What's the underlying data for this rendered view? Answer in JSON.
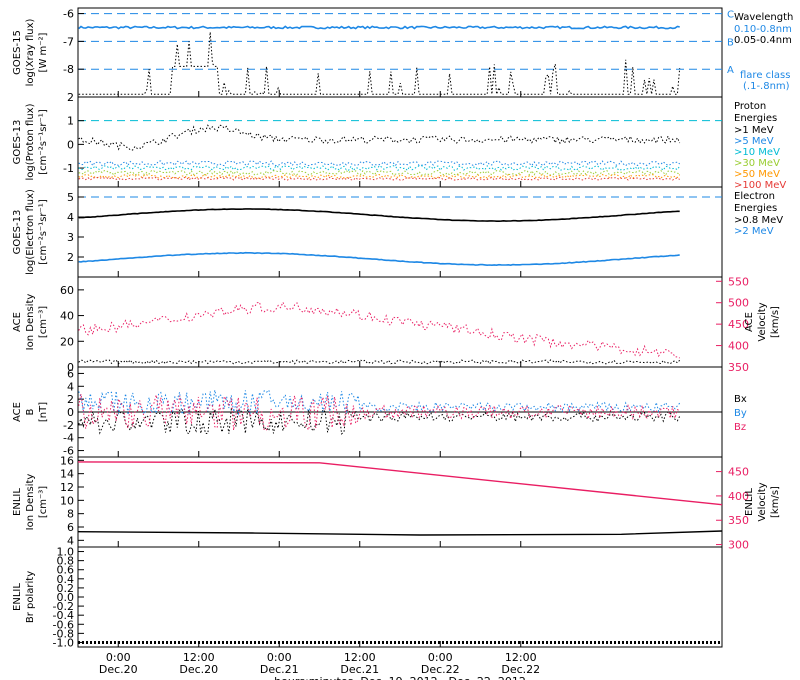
{
  "chart_data": {
    "type": "line",
    "xlabel": "hours:minutes, Dec. 19, 2012 - Dec. 22, 2012",
    "x_range_hours": [
      -6,
      90
    ],
    "x_ticks": [
      {
        "hours": 0,
        "time": "0:00",
        "date": "Dec.20"
      },
      {
        "hours": 12,
        "time": "12:00",
        "date": "Dec.20"
      },
      {
        "hours": 24,
        "time": "0:00",
        "date": "Dec.21"
      },
      {
        "hours": 36,
        "time": "12:00",
        "date": "Dec.21"
      },
      {
        "hours": 48,
        "time": "0:00",
        "date": "Dec.22"
      },
      {
        "hours": 60,
        "time": "12:00",
        "date": "Dec.22"
      }
    ],
    "panels": [
      {
        "id": "goes-xray",
        "ylabel": [
          "GOES-15",
          "log(Xray flux)",
          "[W m⁻²]"
        ],
        "ylim": [
          -9,
          -5.8
        ],
        "ticks": [
          -6,
          -7,
          -8
        ],
        "grid_dashed": [
          -6,
          -7,
          -8
        ],
        "legend_title": "Wavelength",
        "legend": [
          {
            "text": "0.10-0.8nm",
            "color": "#1e88e5"
          },
          {
            "text": "0.05-0.4nm",
            "color": "#000000"
          }
        ],
        "flare_class_labels": [
          {
            "text": "C",
            "y": -6
          },
          {
            "text": "B",
            "y": -7
          },
          {
            "text": "A",
            "y": -8
          }
        ],
        "flare_class_note": [
          "flare class",
          "(.1-.8nm)"
        ],
        "series": [
          {
            "color": "#1e88e5",
            "baseline": -6.5,
            "noise": 0.04
          },
          {
            "color": "#000000",
            "baseline": -8.9,
            "noise": 0.1
          }
        ]
      },
      {
        "id": "goes-proton",
        "ylabel": [
          "GOES-13",
          "log(Proton flux)",
          "[cm⁻²s⁻¹sr⁻¹]"
        ],
        "ylim": [
          -1.8,
          2.0
        ],
        "ticks": [
          2,
          1,
          0,
          -1
        ],
        "grid_dashed": [
          1
        ],
        "grid_color": "#00bcd4",
        "legend_title": "Proton Energies",
        "legend": [
          {
            "text": ">1 MeV",
            "color": "#000000"
          },
          {
            "text": ">5 MeV",
            "color": "#1e88e5"
          },
          {
            "text": ">10 MeV",
            "color": "#00bcd4"
          },
          {
            "text": ">30 MeV",
            "color": "#9acd32"
          },
          {
            "text": ">50 MeV",
            "color": "#ff9800"
          },
          {
            "text": ">100 MeV",
            "color": "#e53935"
          }
        ],
        "series": [
          {
            "color": "#000000",
            "baseline": 0.1,
            "noise": 0.15
          },
          {
            "color": "#1e88e5",
            "baseline": -0.8,
            "noise": 0.1
          },
          {
            "color": "#00bcd4",
            "baseline": -1.0,
            "noise": 0.1
          },
          {
            "color": "#9acd32",
            "baseline": -1.2,
            "noise": 0.1
          },
          {
            "color": "#ff9800",
            "baseline": -1.35,
            "noise": 0.08
          },
          {
            "color": "#e53935",
            "baseline": -1.45,
            "noise": 0.06
          }
        ]
      },
      {
        "id": "goes-electron",
        "ylabel": [
          "GOES-13",
          "log(Electron flux)",
          "[cm⁻²s⁻¹sr⁻¹]"
        ],
        "ylim": [
          1,
          5.5
        ],
        "ticks": [
          5,
          4,
          3,
          2
        ],
        "grid_dashed": [
          5
        ],
        "legend_title": "Electron Energies",
        "legend": [
          {
            "text": ">0.8 MeV",
            "color": "#000000"
          },
          {
            "text": ">2 MeV",
            "color": "#1e88e5"
          }
        ],
        "series": [
          {
            "color": "#000000",
            "baseline": 4.1,
            "noise": 0.02
          },
          {
            "color": "#1e88e5",
            "baseline": 1.9,
            "noise": 0.03
          }
        ]
      },
      {
        "id": "ace-density",
        "ylabel": [
          "ACE",
          "Ion Density",
          "[cm⁻³]"
        ],
        "ylim": [
          0,
          70
        ],
        "ticks": [
          0,
          20,
          40,
          60
        ],
        "y2label": [
          "ACE",
          "Velocity",
          "[km/s]"
        ],
        "y2lim": [
          350,
          560
        ],
        "y2ticks": [
          350,
          400,
          450,
          500,
          550
        ],
        "y2color": "#e91e63",
        "series": [
          {
            "color": "#000000",
            "axis": "left",
            "baseline": 4,
            "noise": 1.5
          },
          {
            "color": "#e91e63",
            "axis": "right",
            "baseline": 450,
            "noise": 12
          }
        ]
      },
      {
        "id": "ace-b",
        "ylabel": [
          "ACE",
          "B",
          "[nT]"
        ],
        "ylim": [
          -7,
          7
        ],
        "ticks": [
          6,
          4,
          2,
          0,
          -2,
          -4,
          -6
        ],
        "zero_line": true,
        "legend": [
          {
            "text": "Bx",
            "color": "#000000"
          },
          {
            "text": "By",
            "color": "#1e88e5"
          },
          {
            "text": "Bz",
            "color": "#e91e63"
          }
        ],
        "series": [
          {
            "color": "#000000",
            "baseline": -1.5,
            "noise": 1.5
          },
          {
            "color": "#1e88e5",
            "baseline": 1.5,
            "noise": 1.5
          },
          {
            "color": "#e91e63",
            "baseline": 0,
            "noise": 2.2
          }
        ]
      },
      {
        "id": "enlil-density",
        "ylabel": [
          "ENLIL",
          "Ion Density",
          "[cm⁻³]"
        ],
        "ylim": [
          3,
          16.5
        ],
        "ticks": [
          16,
          14,
          12,
          10,
          8,
          6,
          4
        ],
        "y2label": [
          "ENLIL",
          "Velocity",
          "[km/s]"
        ],
        "y2lim": [
          295,
          480
        ],
        "y2ticks": [
          300,
          350,
          400,
          450
        ],
        "y2color": "#e91e63",
        "series": [
          {
            "color": "#e91e63",
            "axis": "right",
            "points": [
              [
                -6,
                470
              ],
              [
                30,
                468
              ],
              [
                90,
                382
              ]
            ]
          },
          {
            "color": "#000000",
            "axis": "left",
            "points": [
              [
                -6,
                5.3
              ],
              [
                20,
                5.1
              ],
              [
                45,
                4.8
              ],
              [
                75,
                4.9
              ],
              [
                90,
                5.4
              ]
            ]
          }
        ]
      },
      {
        "id": "enlil-polarity",
        "ylabel": [
          "ENLIL",
          "Br polarity"
        ],
        "ylim": [
          -1.1,
          1.1
        ],
        "ticks": [
          1.0,
          0.8,
          0.6,
          0.4,
          0.2,
          0.0,
          -0.2,
          -0.4,
          -0.6,
          -0.8,
          -1.0
        ],
        "series": [
          {
            "color": "#000000",
            "points": [
              [
                -6,
                -1.0
              ],
              [
                90,
                -1.0
              ]
            ]
          }
        ]
      }
    ]
  }
}
